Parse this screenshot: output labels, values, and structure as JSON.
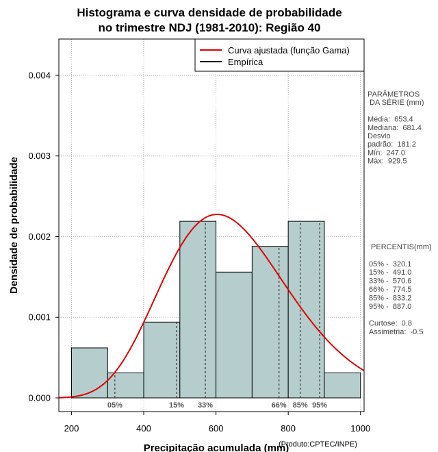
{
  "chart_data": {
    "type": "histogram",
    "title_line1": "Histograma e curva densidade de probabilidade",
    "title_line2": "no trimestre NDJ (1981-2010): Região 40",
    "xlabel": "Precipitação acumulada (mm)",
    "ylabel": "Densidade de probabilidade",
    "credit": "(Produto:CPTEC/INPE)",
    "xlim": [
      165,
      1010
    ],
    "ylim": [
      0,
      0.00445
    ],
    "x_ticks": [
      200,
      400,
      600,
      800,
      1000
    ],
    "x_tick_labels": [
      "200",
      "400",
      "600",
      "800",
      "1000"
    ],
    "y_ticks": [
      0,
      0.001,
      0.002,
      0.003,
      0.004
    ],
    "y_tick_labels": [
      "0.000",
      "0.001",
      "0.002",
      "0.003",
      "0.004"
    ],
    "grid": true,
    "bins": [
      {
        "start": 200,
        "end": 300,
        "density": 0.00062
      },
      {
        "start": 300,
        "end": 400,
        "density": 0.00031
      },
      {
        "start": 400,
        "end": 500,
        "density": 0.00094
      },
      {
        "start": 500,
        "end": 600,
        "density": 0.00219
      },
      {
        "start": 600,
        "end": 700,
        "density": 0.00156
      },
      {
        "start": 700,
        "end": 800,
        "density": 0.00188
      },
      {
        "start": 800,
        "end": 900,
        "density": 0.00219
      },
      {
        "start": 900,
        "end": 1000,
        "density": 0.00031
      }
    ],
    "bar_color": "#b5cdcc",
    "curve_color": "#e00000",
    "gamma_fit": {
      "mean": 653.4,
      "sd": 181.2
    },
    "legend": [
      {
        "label": "Curva ajustada (função Gama)",
        "color": "#e00000"
      },
      {
        "label": "Empírica",
        "color": "#000000"
      }
    ],
    "percentile_markers": [
      {
        "label": "05%",
        "value": 320.1
      },
      {
        "label": "15%",
        "value": 491.0
      },
      {
        "label": "33%",
        "value": 570.6
      },
      {
        "label": "66%",
        "value": 774.5
      },
      {
        "label": "85%",
        "value": 833.2
      },
      {
        "label": "95%",
        "value": 887.0
      }
    ]
  },
  "stats_panel": {
    "lines": [
      "PARÂMETROS",
      " DA SÉRIE (mm)",
      "",
      "Média:  653.4",
      "Mediana:  681.4",
      "Desvio",
      "padrão:  181.2",
      "Mín:  247.0",
      "Máx:  929.5"
    ]
  },
  "percentiles_panel": {
    "lines": [
      " PERCENTIS(mm)",
      "",
      "05% -  320.1",
      "15% -  491.0",
      "33% -  570.6",
      "66% -  774.5",
      "85% -  833.2",
      "95% -  887.0",
      "",
      "Curtose:  0.8",
      "Assimetria:  -0.5"
    ]
  }
}
